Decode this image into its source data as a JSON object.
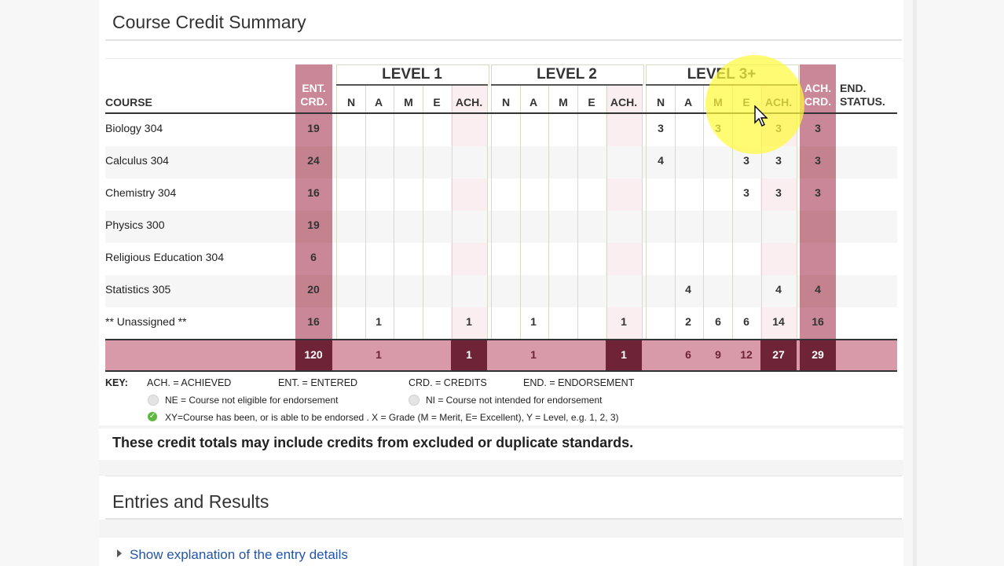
{
  "sections": {
    "credit_summary_title": "Course Credit Summary",
    "entries_title": "Entries and Results"
  },
  "table": {
    "headers": {
      "course": "COURSE",
      "ent_crd_1": "ENT.",
      "ent_crd_2": "CRD.",
      "level1": "LEVEL 1",
      "level2": "LEVEL 2",
      "level3": "LEVEL 3+",
      "sub": [
        "N",
        "A",
        "M",
        "E",
        "ACH."
      ],
      "ach_crd_1": "ACH.",
      "ach_crd_2": "CRD.",
      "end_status_1": "END.",
      "end_status_2": "STATUS."
    },
    "rows": [
      {
        "course": "Biology 304",
        "ent": "19",
        "l1": [
          "",
          "",
          "",
          "",
          ""
        ],
        "l2": [
          "",
          "",
          "",
          "",
          ""
        ],
        "l3": [
          "3",
          "",
          "3",
          "",
          "3"
        ],
        "ach": "3"
      },
      {
        "course": "Calculus 304",
        "ent": "24",
        "l1": [
          "",
          "",
          "",
          "",
          ""
        ],
        "l2": [
          "",
          "",
          "",
          "",
          ""
        ],
        "l3": [
          "4",
          "",
          "",
          "3",
          "3"
        ],
        "ach": "3"
      },
      {
        "course": "Chemistry 304",
        "ent": "16",
        "l1": [
          "",
          "",
          "",
          "",
          ""
        ],
        "l2": [
          "",
          "",
          "",
          "",
          ""
        ],
        "l3": [
          "",
          "",
          "",
          "3",
          "3"
        ],
        "ach": "3"
      },
      {
        "course": "Physics 300",
        "ent": "19",
        "l1": [
          "",
          "",
          "",
          "",
          ""
        ],
        "l2": [
          "",
          "",
          "",
          "",
          ""
        ],
        "l3": [
          "",
          "",
          "",
          "",
          ""
        ],
        "ach": ""
      },
      {
        "course": "Religious Education 304",
        "ent": "6",
        "l1": [
          "",
          "",
          "",
          "",
          ""
        ],
        "l2": [
          "",
          "",
          "",
          "",
          ""
        ],
        "l3": [
          "",
          "",
          "",
          "",
          ""
        ],
        "ach": ""
      },
      {
        "course": "Statistics 305",
        "ent": "20",
        "l1": [
          "",
          "",
          "",
          "",
          ""
        ],
        "l2": [
          "",
          "",
          "",
          "",
          ""
        ],
        "l3": [
          "",
          "4",
          "",
          "",
          "4"
        ],
        "ach": "4"
      },
      {
        "course": "** Unassigned **",
        "ent": "16",
        "l1": [
          "",
          "1",
          "",
          "",
          "1"
        ],
        "l2": [
          "",
          "1",
          "",
          "",
          "1"
        ],
        "l3": [
          "",
          "2",
          "6",
          "6",
          "14"
        ],
        "ach": "16"
      }
    ],
    "totals": {
      "ent": "120",
      "l1": [
        "",
        "1",
        "",
        "",
        "1"
      ],
      "l2": [
        "",
        "1",
        "",
        "",
        "1"
      ],
      "l3": [
        "",
        "6",
        "9",
        "12",
        "27"
      ],
      "ach": "29"
    }
  },
  "key": {
    "label": "KEY:",
    "ach": "ACH. = ACHIEVED",
    "ent": "ENT. = ENTERED",
    "crd": "CRD. = CREDITS",
    "end": "END. = ENDORSEMENT",
    "ne": "NE = Course not eligible for endorsement",
    "ni": "NI = Course not intended for endorsement",
    "xy": "XY=Course has been, or is able to be endorsed . X = Grade (M = Merit, E= Excellent), Y = Level, e.g. 1, 2, 3)"
  },
  "note": "These credit totals may include credits from excluded or duplicate standards.",
  "link": "Show explanation of the entry details",
  "colors": {
    "band_light": "#fbeef0",
    "band_dark": "#c98797",
    "band_deep": "#6f2336",
    "total_row": "#d89aa8",
    "check_green": "#5cb840",
    "link_blue": "#2255aa"
  }
}
